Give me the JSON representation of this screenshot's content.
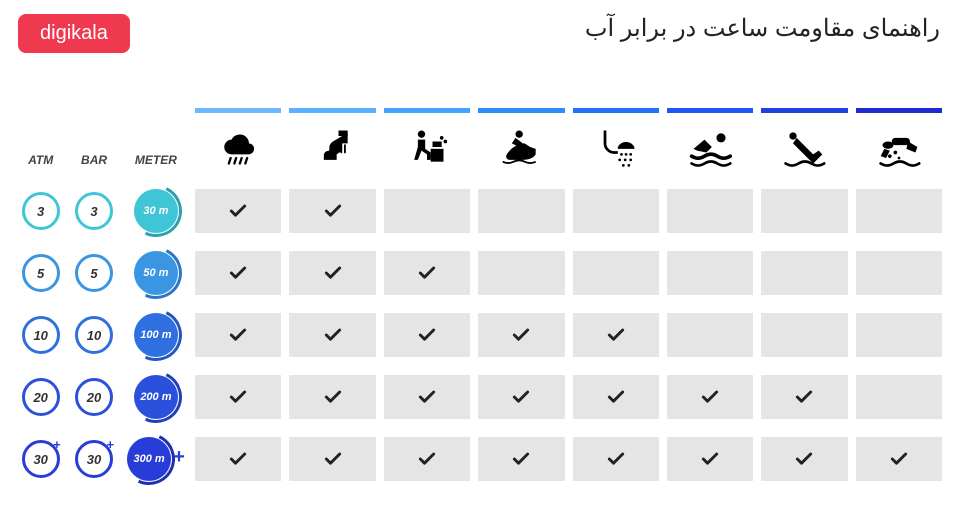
{
  "brand": {
    "logo_text": "digikala",
    "logo_bg": "#ef394e"
  },
  "title": "راهنمای مقاومت ساعت در برابر آب",
  "unit_headers": [
    "ATM",
    "BAR",
    "METER"
  ],
  "activities": [
    {
      "name": "rain",
      "bar_color": "#6db8ff"
    },
    {
      "name": "wash",
      "bar_color": "#58b0ff"
    },
    {
      "name": "splash",
      "bar_color": "#44a4ff"
    },
    {
      "name": "jetski",
      "bar_color": "#2f8cff"
    },
    {
      "name": "shower",
      "bar_color": "#2670ff"
    },
    {
      "name": "swim",
      "bar_color": "#1f55f0"
    },
    {
      "name": "dive",
      "bar_color": "#2040e0"
    },
    {
      "name": "scuba",
      "bar_color": "#1d2bd0"
    }
  ],
  "rows": [
    {
      "atm": "3",
      "bar": "3",
      "meter": "30 m",
      "ring_color": "#3ec6d6",
      "fill_color": "#3ec6d6",
      "arc_color": "#2aa0b0",
      "plus": false,
      "checks": [
        true,
        true,
        false,
        false,
        false,
        false,
        false,
        false
      ]
    },
    {
      "atm": "5",
      "bar": "5",
      "meter": "50 m",
      "ring_color": "#3a96e3",
      "fill_color": "#3a96e3",
      "arc_color": "#2a78c4",
      "plus": false,
      "checks": [
        true,
        true,
        true,
        false,
        false,
        false,
        false,
        false
      ]
    },
    {
      "atm": "10",
      "bar": "10",
      "meter": "100 m",
      "ring_color": "#2f6fe0",
      "fill_color": "#2f6fe0",
      "arc_color": "#2456c0",
      "plus": false,
      "checks": [
        true,
        true,
        true,
        true,
        true,
        false,
        false,
        false
      ]
    },
    {
      "atm": "20",
      "bar": "20",
      "meter": "200 m",
      "ring_color": "#2a50dc",
      "fill_color": "#2a50dc",
      "arc_color": "#2040b8",
      "plus": false,
      "checks": [
        true,
        true,
        true,
        true,
        true,
        true,
        true,
        false
      ]
    },
    {
      "atm": "30",
      "bar": "30",
      "meter": "300 m",
      "ring_color": "#283cd8",
      "fill_color": "#283cd8",
      "arc_color": "#1e30b0",
      "plus": true,
      "checks": [
        true,
        true,
        true,
        true,
        true,
        true,
        true,
        true
      ]
    }
  ],
  "cell_bg": "#e5e5e5",
  "check_color": "#222222",
  "background_color": "#ffffff"
}
